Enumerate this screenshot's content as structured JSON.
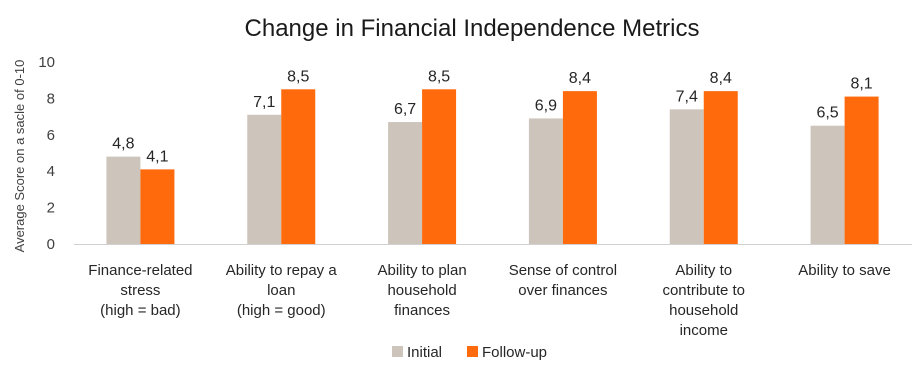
{
  "chart_data": {
    "type": "bar",
    "title": "Change in Financial Independence Metrics",
    "ylabel": "Average Score on a sacle of  0-10",
    "xlabel": "",
    "ylim": [
      0,
      10
    ],
    "yticks": [
      0,
      2,
      4,
      6,
      8,
      10
    ],
    "grid": false,
    "legend_position": "bottom",
    "categories": [
      [
        "Finance-related",
        "stress",
        "(high = bad)"
      ],
      [
        "Ability to repay a",
        "loan",
        "(high = good)"
      ],
      [
        "Ability to plan",
        "household",
        "finances"
      ],
      [
        "Sense of control",
        "over finances"
      ],
      [
        "Ability to",
        "contribute to",
        "household",
        "income"
      ],
      [
        "Ability to save"
      ]
    ],
    "series": [
      {
        "name": "Initial",
        "color": "#cdc5bb",
        "values": [
          4.8,
          7.1,
          6.7,
          6.9,
          7.4,
          6.5
        ],
        "labels": [
          "4,8",
          "7,1",
          "6,7",
          "6,9",
          "7,4",
          "6,5"
        ]
      },
      {
        "name": "Follow-up",
        "color": "#ff6a0d",
        "values": [
          4.1,
          8.5,
          8.5,
          8.4,
          8.4,
          8.1
        ],
        "labels": [
          "4,1",
          "8,5",
          "8,5",
          "8,4",
          "8,4",
          "8,1"
        ]
      }
    ]
  }
}
